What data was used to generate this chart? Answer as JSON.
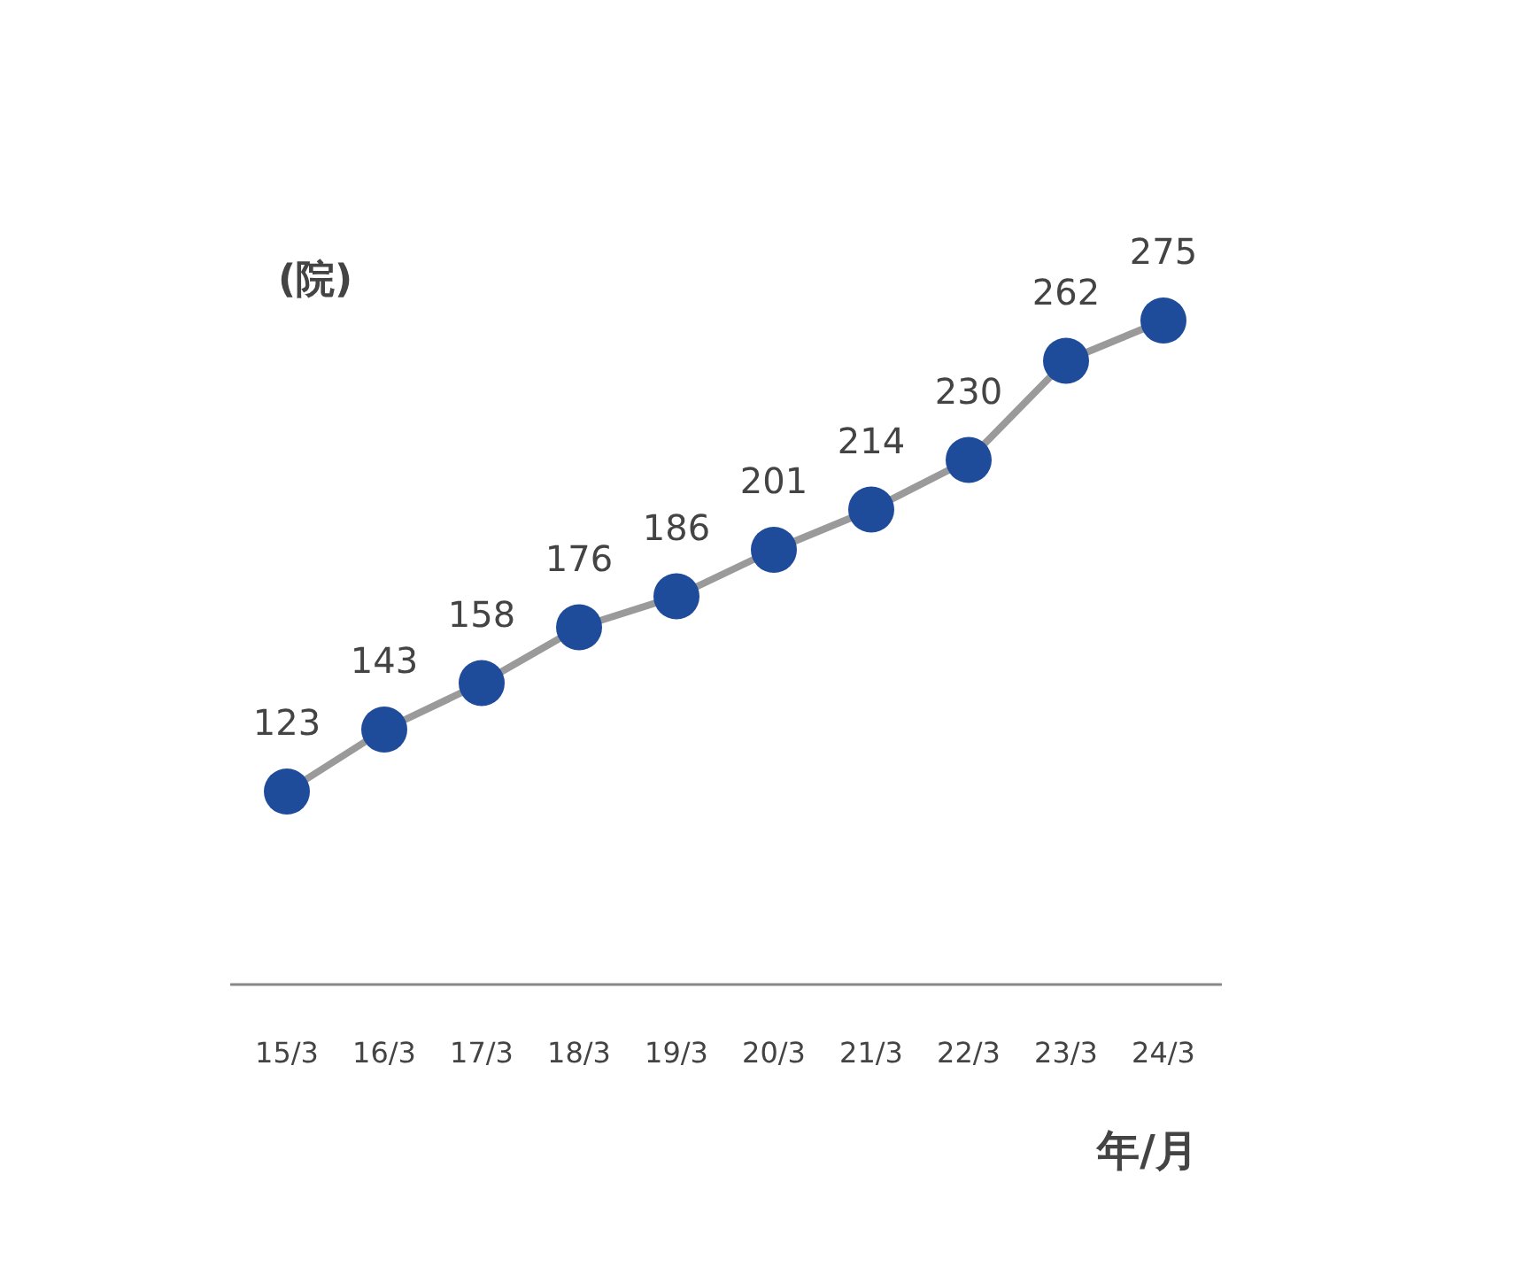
{
  "chart_data": {
    "type": "line",
    "xlabel": "年/月",
    "ylabel": "(院)",
    "categories": [
      "15/3",
      "16/3",
      "17/3",
      "18/3",
      "19/3",
      "20/3",
      "21/3",
      "22/3",
      "23/3",
      "24/3"
    ],
    "series": [
      {
        "color": "#1f4b9b",
        "values": [
          123,
          143,
          158,
          176,
          186,
          201,
          214,
          230,
          262,
          275
        ]
      }
    ],
    "data_labels": true,
    "marker": "circle",
    "line_style": "solid",
    "tick_labels": "x"
  }
}
